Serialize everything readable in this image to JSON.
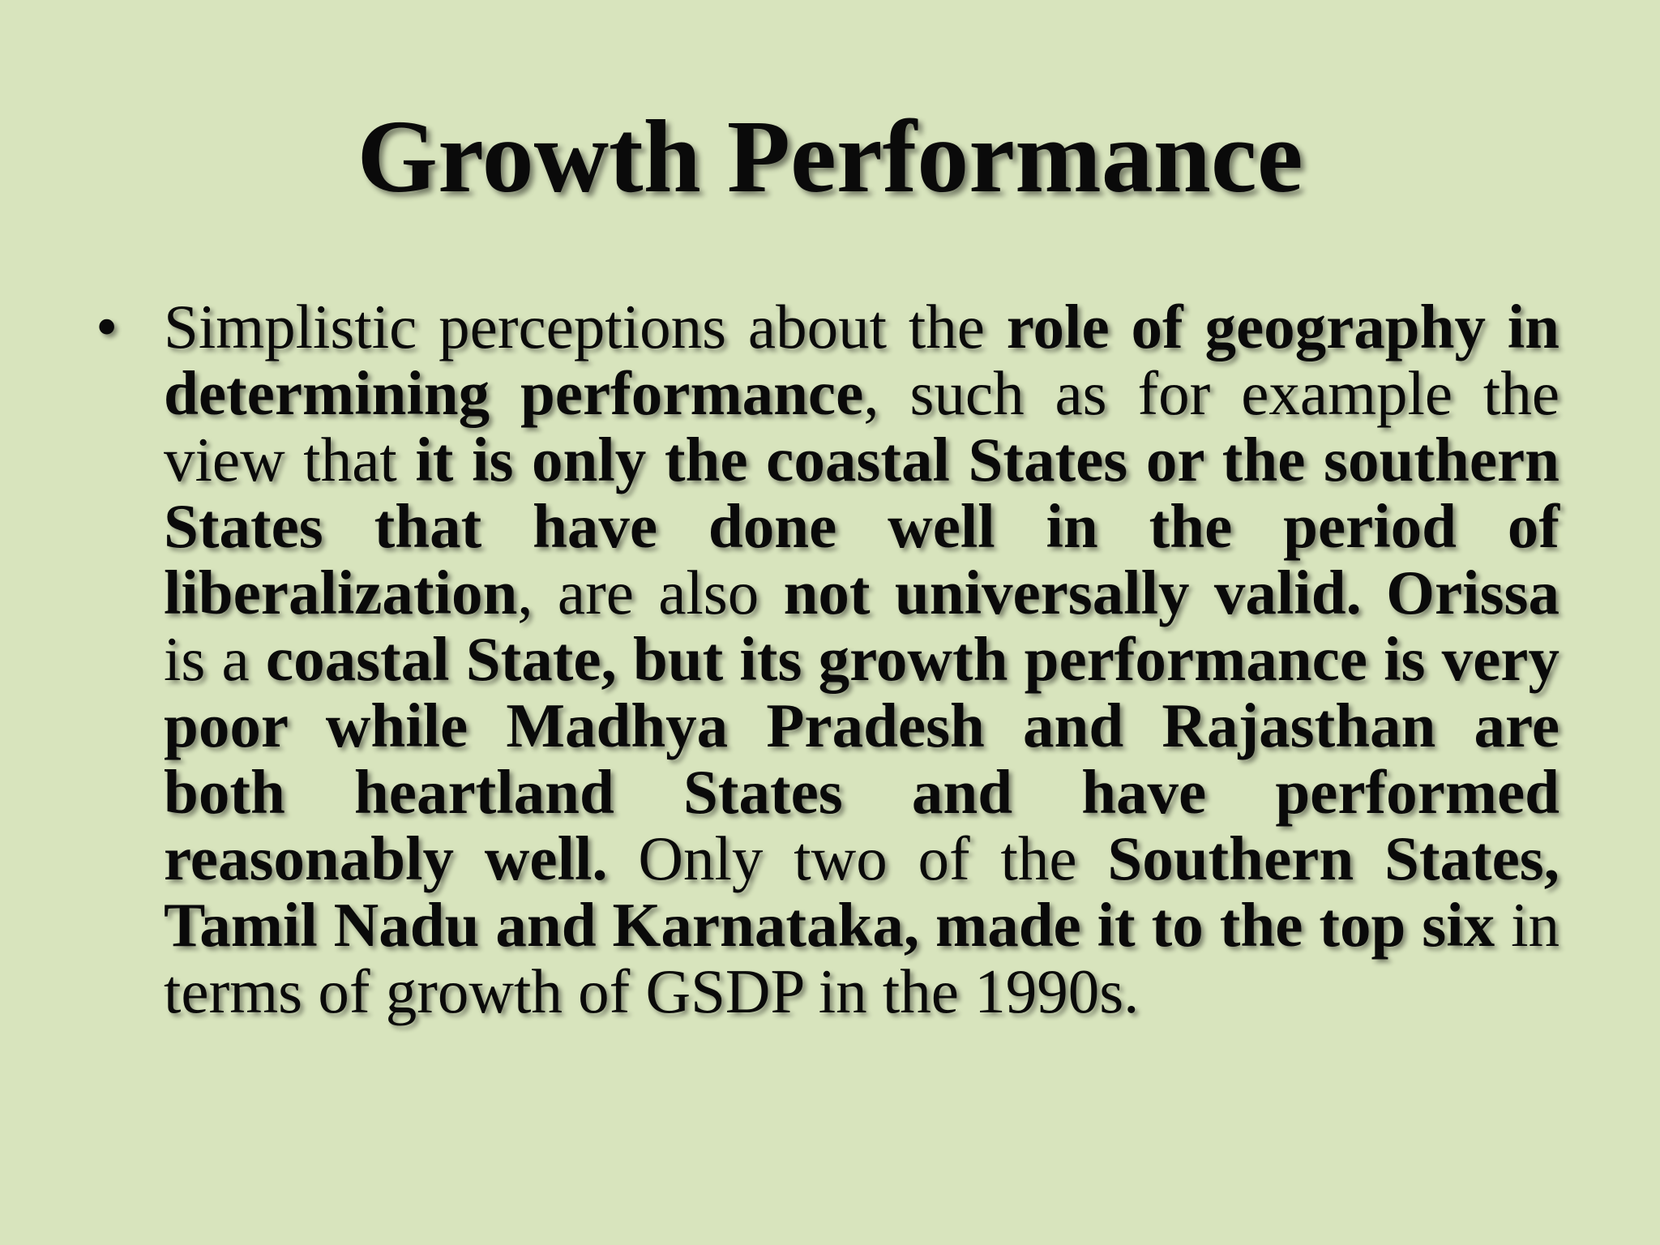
{
  "slide": {
    "title": "Growth Performance",
    "bullet_symbol": "•",
    "bullet": {
      "segments": [
        {
          "text": "Simplistic perceptions about the ",
          "bold": false
        },
        {
          "text": "role of geography in determining performance",
          "bold": true
        },
        {
          "text": ", such as for example the view that ",
          "bold": false
        },
        {
          "text": "it is only the coastal States or the southern States that have done well in the period of liberalization",
          "bold": true
        },
        {
          "text": ", are also ",
          "bold": false
        },
        {
          "text": "not universally valid. Orissa",
          "bold": true
        },
        {
          "text": " is a ",
          "bold": false
        },
        {
          "text": "coastal State, but its growth performance is very poor while Madhya Pradesh and Rajasthan are both heartland States and have performed reasonably well.",
          "bold": true
        },
        {
          "text": " Only two of the ",
          "bold": false
        },
        {
          "text": "Southern States, Tamil Nadu and Karnataka, made it to the top six",
          "bold": true
        },
        {
          "text": " in terms of growth of GSDP in the 1990s.",
          "bold": false
        }
      ]
    }
  },
  "colors": {
    "background": "#d8e4bd",
    "text": "#0a0a0a"
  }
}
